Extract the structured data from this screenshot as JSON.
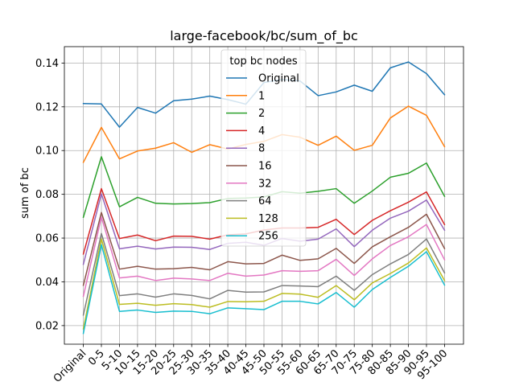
{
  "chart_data": {
    "type": "line",
    "title": "large-facebook/bc/sum_of_bc",
    "xlabel": "",
    "ylabel": "sum of bc",
    "categories": [
      "Original",
      "0-5",
      "5-10",
      "10-15",
      "15-20",
      "20-25",
      "25-30",
      "30-35",
      "35-40",
      "40-45",
      "45-50",
      "50-55",
      "55-60",
      "60-65",
      "65-70",
      "70-75",
      "75-80",
      "80-85",
      "85-90",
      "90-95",
      "95-100"
    ],
    "ylim": [
      0.0115,
      0.1475
    ],
    "yticks": [
      0.02,
      0.04,
      0.06,
      0.08,
      0.1,
      0.12,
      0.14
    ],
    "ytick_labels": [
      "0.02",
      "0.04",
      "0.06",
      "0.08",
      "0.10",
      "0.12",
      "0.14"
    ],
    "grid": true,
    "legend": {
      "title": "top bc nodes",
      "position": "top-center"
    },
    "series": [
      {
        "name": "Original",
        "color": "#1f77b4",
        "values": [
          0.1215,
          0.1213,
          0.1107,
          0.1197,
          0.1171,
          0.1228,
          0.1235,
          0.1249,
          0.1233,
          0.1212,
          0.1311,
          0.1325,
          0.1318,
          0.1251,
          0.1268,
          0.1299,
          0.1271,
          0.1378,
          0.1405,
          0.1352,
          0.1255
        ]
      },
      {
        "name": "1",
        "color": "#ff7f0e",
        "values": [
          0.0946,
          0.1106,
          0.0962,
          0.0998,
          0.1011,
          0.1036,
          0.0992,
          0.1027,
          0.1007,
          0.1028,
          0.1042,
          0.1073,
          0.1061,
          0.1024,
          0.1066,
          0.1001,
          0.1024,
          0.1149,
          0.1203,
          0.1161,
          0.1018
        ]
      },
      {
        "name": "2",
        "color": "#2ca02c",
        "values": [
          0.0695,
          0.0972,
          0.0743,
          0.0786,
          0.0759,
          0.0756,
          0.0758,
          0.0762,
          0.0781,
          0.0783,
          0.0788,
          0.0812,
          0.0805,
          0.0814,
          0.0826,
          0.0759,
          0.0815,
          0.0878,
          0.0896,
          0.0943,
          0.0791
        ]
      },
      {
        "name": "4",
        "color": "#d62728",
        "values": [
          0.0527,
          0.0826,
          0.0598,
          0.0614,
          0.0588,
          0.0609,
          0.0608,
          0.0595,
          0.0615,
          0.0619,
          0.0637,
          0.0646,
          0.0646,
          0.0649,
          0.0686,
          0.0616,
          0.0681,
          0.0725,
          0.0764,
          0.0811,
          0.0662
        ]
      },
      {
        "name": "8",
        "color": "#9467bd",
        "values": [
          0.048,
          0.0802,
          0.0551,
          0.0563,
          0.055,
          0.0559,
          0.0558,
          0.0548,
          0.0576,
          0.0581,
          0.0567,
          0.0598,
          0.0586,
          0.0595,
          0.0642,
          0.0561,
          0.0636,
          0.0691,
          0.0723,
          0.0774,
          0.0636
        ]
      },
      {
        "name": "16",
        "color": "#8c564b",
        "values": [
          0.0384,
          0.0717,
          0.0458,
          0.0471,
          0.0458,
          0.046,
          0.0466,
          0.0455,
          0.0492,
          0.0482,
          0.0484,
          0.0522,
          0.0498,
          0.0505,
          0.0553,
          0.0484,
          0.056,
          0.0606,
          0.0649,
          0.0709,
          0.0552
        ]
      },
      {
        "name": "32",
        "color": "#e377c2",
        "values": [
          0.0334,
          0.0696,
          0.0418,
          0.0426,
          0.0406,
          0.0417,
          0.0413,
          0.0406,
          0.0439,
          0.0426,
          0.0431,
          0.0451,
          0.0448,
          0.0451,
          0.0503,
          0.0429,
          0.0505,
          0.0566,
          0.0606,
          0.0662,
          0.0501
        ]
      },
      {
        "name": "64",
        "color": "#7f7f7f",
        "values": [
          0.0248,
          0.0621,
          0.0337,
          0.0345,
          0.033,
          0.0345,
          0.0338,
          0.0322,
          0.0361,
          0.0353,
          0.0354,
          0.0383,
          0.0381,
          0.0378,
          0.0426,
          0.0361,
          0.0433,
          0.0482,
          0.0525,
          0.0596,
          0.0441
        ]
      },
      {
        "name": "128",
        "color": "#bcbd22",
        "values": [
          0.0185,
          0.0596,
          0.0297,
          0.0302,
          0.0293,
          0.03,
          0.0296,
          0.0284,
          0.031,
          0.0309,
          0.0311,
          0.0347,
          0.0344,
          0.0329,
          0.0383,
          0.0318,
          0.0395,
          0.0438,
          0.0486,
          0.0555,
          0.0406
        ]
      },
      {
        "name": "256",
        "color": "#17becf",
        "values": [
          0.0164,
          0.057,
          0.0265,
          0.0271,
          0.026,
          0.0266,
          0.0265,
          0.0254,
          0.0281,
          0.0277,
          0.0273,
          0.0311,
          0.0311,
          0.0299,
          0.0351,
          0.0284,
          0.0365,
          0.042,
          0.0471,
          0.0538,
          0.0385
        ]
      }
    ]
  }
}
